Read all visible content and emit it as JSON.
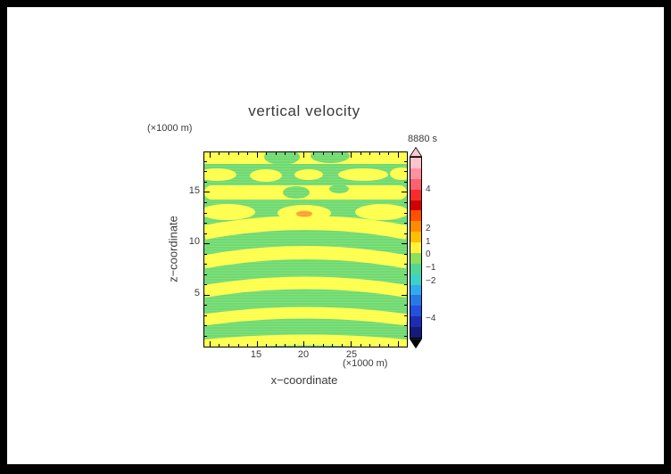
{
  "theme": {
    "frame_color": "#000000",
    "paper_color": "#ffffff",
    "text_color": "#3a3a3a"
  },
  "chart_data": {
    "type": "contour",
    "title": "vertical velocity",
    "time_label": "8880 s",
    "xlabel": "x−coordinate",
    "ylabel": "z−coordinate",
    "x_unit_label": "(×1000 m)",
    "z_unit_label": "(×1000 m)",
    "x_range": [
      9.4,
      30.9
    ],
    "z_range": [
      0,
      18.9
    ],
    "xtick_labels": [
      "15",
      "20",
      "25"
    ],
    "ztick_labels": [
      "5",
      "10",
      "15"
    ],
    "xticks_major": [
      15,
      20,
      25
    ],
    "zticks_major": [
      5,
      10,
      15
    ],
    "minor_tick_step": 1,
    "grid": "off",
    "colorbar": {
      "labels": [
        "4",
        "2",
        "1",
        "0",
        "−1",
        "−2",
        "−4"
      ],
      "colors": [
        "#ffc3cd",
        "#ff91a0",
        "#ff5f6e",
        "#f52d2d",
        "#d20000",
        "#ff5000",
        "#ff8c00",
        "#ffbe00",
        "#fff23c",
        "#8ce05a",
        "#50d796",
        "#3cd2c8",
        "#32aaf0",
        "#2878e6",
        "#2350dc",
        "#1e2cb4",
        "#141b78"
      ],
      "over_arrow_color": "#ffc8d2",
      "under_arrow_color": "#000000",
      "outline_color": "#000000",
      "position": "right"
    },
    "field": {
      "background_color": "#70da70",
      "band_color": "#ffff4b",
      "peak_color": "#ffa02d",
      "background_value": -0.5,
      "band_value": 0.5,
      "peak_value": 2,
      "peak_location": {
        "x": 20,
        "z": 13
      },
      "yellow_band_z_centers": [
        18.4,
        16.7,
        15.0,
        13.1,
        11.5,
        8.7,
        5.8,
        3.0,
        0.5
      ],
      "description": "Alternating horizontal wave bands of weakly positive (yellow, ~+0.5) and weakly negative (green, ~-0.5) vertical velocity; bands arch upward toward the centre in the lower half, fragment into blobs in the upper half, with a small ~+2 maximum (orange) near x=20, z=13."
    }
  }
}
